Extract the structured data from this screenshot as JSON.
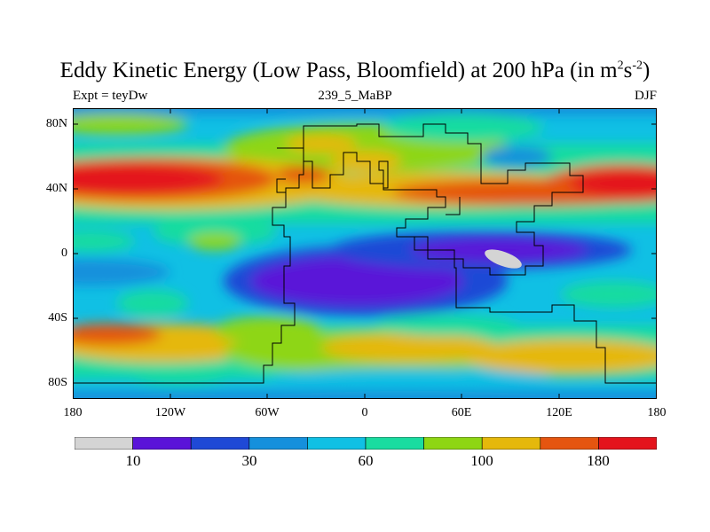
{
  "title": {
    "main": "Eddy Kinetic Energy (Low Pass, Bloomfield) at 200 hPa (in m",
    "sup1": "2",
    "mid": "s",
    "sup2": "-2",
    "end": ")"
  },
  "subtitle": {
    "left": "Expt = teyDw",
    "center": "239_5_MaBP",
    "right": "DJF"
  },
  "axes": {
    "y_ticks": [
      "80N",
      "40N",
      "0",
      "40S",
      "80S"
    ],
    "x_ticks": [
      "180",
      "120W",
      "60W",
      "0",
      "60E",
      "120E",
      "180"
    ]
  },
  "colorbar": {
    "colors": [
      "#d4d4d4",
      "#5a14d8",
      "#1f49d6",
      "#1590dc",
      "#10c0e4",
      "#19dca0",
      "#8ed613",
      "#e5b80b",
      "#e55510",
      "#e4141c"
    ],
    "labels": [
      "10",
      "30",
      "60",
      "100",
      "180"
    ]
  },
  "chart_data": {
    "type": "heatmap",
    "projection": "cylindrical-equidistant",
    "field": "Eddy Kinetic Energy at 200 hPa",
    "xlim": [
      -180,
      180
    ],
    "ylim": [
      -90,
      90
    ],
    "levels": [
      10,
      20,
      30,
      45,
      60,
      80,
      100,
      140,
      180
    ],
    "features": [
      {
        "region": "north-pacific-jet",
        "level": "above 180"
      },
      {
        "region": "north-atlantic-asia-jet",
        "level": "above 180"
      },
      {
        "region": "tropical-atlantic-africa",
        "level": "below 20"
      },
      {
        "region": "maritime-continent",
        "level": "below 10"
      },
      {
        "region": "southern-ocean",
        "level": "100-180"
      }
    ]
  }
}
